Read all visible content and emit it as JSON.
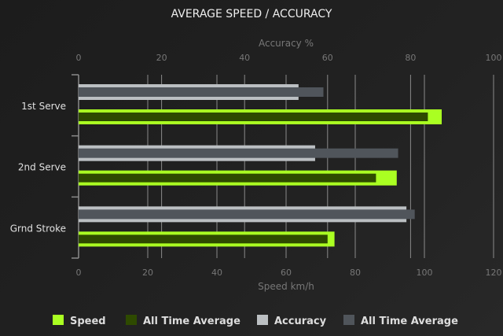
{
  "chart_data": {
    "type": "bar",
    "orientation": "horizontal",
    "title": "AVERAGE SPEED / ACCURACY",
    "categories": [
      "1st Serve",
      "2nd Serve",
      "Grnd Stroke"
    ],
    "x_axis_bottom": {
      "label": "Speed km/h",
      "range": [
        0,
        120
      ],
      "ticks": [
        0,
        20,
        40,
        60,
        80,
        100,
        120
      ]
    },
    "x_axis_top": {
      "label": "Accuracy %",
      "range": [
        0,
        100
      ],
      "ticks": [
        0,
        20,
        40,
        60,
        80,
        100
      ]
    },
    "grid": true,
    "legend_position": "bottom",
    "series": [
      {
        "name": "Speed",
        "axis": "bottom",
        "color": "#aaff22",
        "values": [
          105,
          92,
          74
        ]
      },
      {
        "name": "All Time Average",
        "axis": "bottom",
        "color": "#2e4a00",
        "values": [
          101,
          86,
          72
        ]
      },
      {
        "name": "Accuracy",
        "axis": "top",
        "color": "#bbbfc2",
        "values": [
          53,
          57,
          79
        ]
      },
      {
        "name": "All Time Average",
        "axis": "top",
        "color": "#50555b",
        "values": [
          59,
          77,
          81
        ]
      }
    ]
  }
}
